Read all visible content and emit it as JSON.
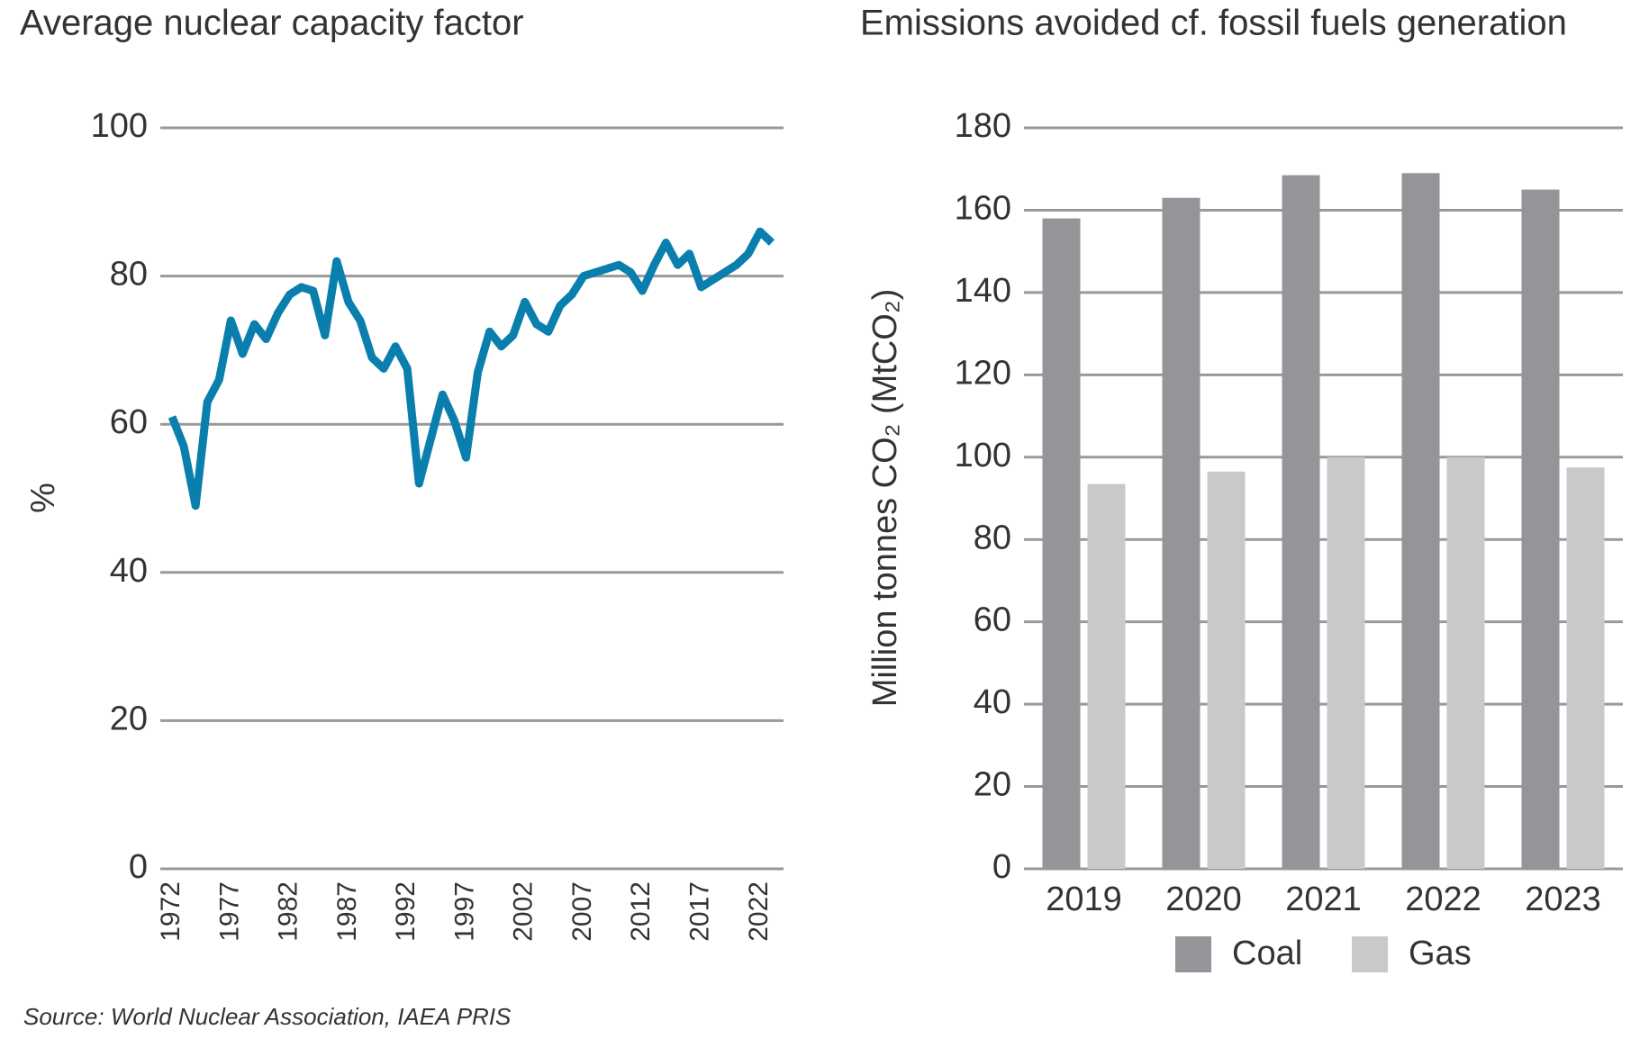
{
  "chart_data": [
    {
      "type": "line",
      "title": "Average nuclear capacity factor",
      "y_label": "%",
      "x": [
        1972,
        1973,
        1974,
        1975,
        1976,
        1977,
        1978,
        1979,
        1980,
        1981,
        1982,
        1983,
        1984,
        1985,
        1986,
        1987,
        1988,
        1989,
        1990,
        1991,
        1992,
        1993,
        1994,
        1995,
        1996,
        1997,
        1998,
        1999,
        2000,
        2001,
        2002,
        2003,
        2004,
        2005,
        2006,
        2007,
        2008,
        2009,
        2010,
        2011,
        2012,
        2013,
        2014,
        2015,
        2016,
        2017,
        2018,
        2019,
        2020,
        2021,
        2022,
        2023
      ],
      "series": [
        {
          "name": "Average nuclear capacity factor",
          "color": "#0a7fad",
          "values": [
            61,
            57,
            49,
            63,
            66,
            74,
            69.5,
            73.5,
            71.5,
            75,
            77.5,
            78.5,
            78,
            72,
            82,
            76.5,
            74,
            69,
            67.5,
            70.5,
            67.5,
            52,
            58,
            64,
            60.5,
            55.5,
            67,
            72.5,
            70.5,
            72,
            76.5,
            73.5,
            72.5,
            76,
            77.5,
            80,
            80.5,
            81,
            81.5,
            80.5,
            78,
            81.5,
            84.5,
            81.5,
            83,
            78.5,
            79.5,
            80.5,
            81.5,
            83,
            86,
            84.5
          ]
        }
      ],
      "xlim": [
        1971,
        2024
      ],
      "xticks": [
        1972,
        1977,
        1982,
        1987,
        1992,
        1997,
        2002,
        2007,
        2012,
        2017,
        2022
      ],
      "ylim": [
        0,
        100
      ],
      "yticks": [
        0,
        20,
        40,
        60,
        80,
        100
      ],
      "grid": true
    },
    {
      "type": "bar",
      "title": "Emissions avoided cf. fossil fuels generation",
      "y_label": "Million tonnes CO₂ (MtCO₂)",
      "categories": [
        "2019",
        "2020",
        "2021",
        "2022",
        "2023"
      ],
      "series": [
        {
          "name": "Coal",
          "color": "#939598",
          "values": [
            158,
            163,
            168.5,
            169,
            165
          ]
        },
        {
          "name": "Gas",
          "color": "#c8c9cb",
          "values": [
            93.5,
            96.5,
            100,
            100,
            97.5
          ]
        }
      ],
      "ylim": [
        0,
        180
      ],
      "yticks": [
        0,
        20,
        40,
        60,
        80,
        100,
        120,
        140,
        160,
        180
      ],
      "grid": true,
      "legend": "bottom"
    }
  ],
  "source": "Source: World Nuclear Association, IAEA PRIS"
}
